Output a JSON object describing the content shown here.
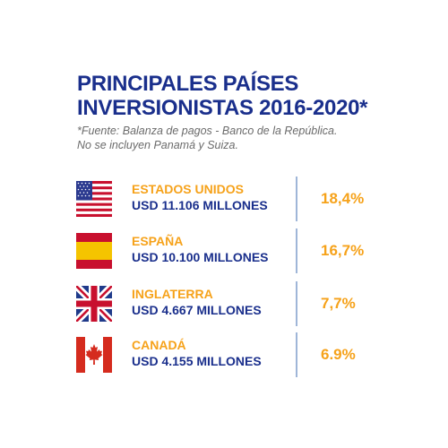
{
  "title_lines": [
    "PRINCIPALES PAÍSES",
    "INVERSIONISTAS 2016-2020*"
  ],
  "note_lines": [
    "*Fuente: Balanza de pagos - Banco de la República.",
    "No se incluyen Panamá y Suiza."
  ],
  "colors": {
    "navy": "#1a2f8c",
    "orange": "#f6a21a",
    "divider": "#9fb6d8",
    "note": "#6b6b6b"
  },
  "rows": [
    {
      "flag": "usa-flag-icon",
      "country": "ESTADOS UNIDOS",
      "amount": "USD 11.106 MILLONES",
      "percent": "18,4%"
    },
    {
      "flag": "spain-flag-icon",
      "country": "ESPAÑA",
      "amount": "USD 10.100 MILLONES",
      "percent": "16,7%"
    },
    {
      "flag": "uk-flag-icon",
      "country": "INGLATERRA",
      "amount": "USD 4.667 MILLONES",
      "percent": "7,7%"
    },
    {
      "flag": "canada-flag-icon",
      "country": "CANADÁ",
      "amount": "USD 4.155 MILLONES",
      "percent": "6.9%"
    }
  ]
}
